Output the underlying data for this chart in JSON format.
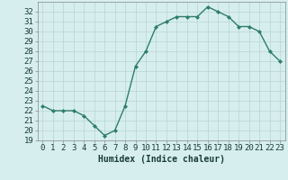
{
  "x": [
    0,
    1,
    2,
    3,
    4,
    5,
    6,
    7,
    8,
    9,
    10,
    11,
    12,
    13,
    14,
    15,
    16,
    17,
    18,
    19,
    20,
    21,
    22,
    23
  ],
  "y": [
    22.5,
    22.0,
    22.0,
    22.0,
    21.5,
    20.5,
    19.5,
    20.0,
    22.5,
    26.5,
    28.0,
    30.5,
    31.0,
    31.5,
    31.5,
    31.5,
    32.5,
    32.0,
    31.5,
    30.5,
    30.5,
    30.0,
    28.0,
    27.0
  ],
  "line_color": "#2e7d6e",
  "marker": "D",
  "marker_size": 2.0,
  "line_width": 1.0,
  "bg_color": "#d6eeee",
  "grid_color": "#b8d4d4",
  "xlabel": "Humidex (Indice chaleur)",
  "xlim": [
    -0.5,
    23.5
  ],
  "ylim": [
    19,
    33
  ],
  "yticks": [
    19,
    20,
    21,
    22,
    23,
    24,
    25,
    26,
    27,
    28,
    29,
    30,
    31,
    32
  ],
  "xticks": [
    0,
    1,
    2,
    3,
    4,
    5,
    6,
    7,
    8,
    9,
    10,
    11,
    12,
    13,
    14,
    15,
    16,
    17,
    18,
    19,
    20,
    21,
    22,
    23
  ],
  "xtick_labels": [
    "0",
    "1",
    "2",
    "3",
    "4",
    "5",
    "6",
    "7",
    "8",
    "9",
    "10",
    "11",
    "12",
    "13",
    "14",
    "15",
    "16",
    "17",
    "18",
    "19",
    "20",
    "21",
    "22",
    "23"
  ],
  "xlabel_fontsize": 7,
  "tick_fontsize": 6.5,
  "label_color": "#1a3a3a"
}
